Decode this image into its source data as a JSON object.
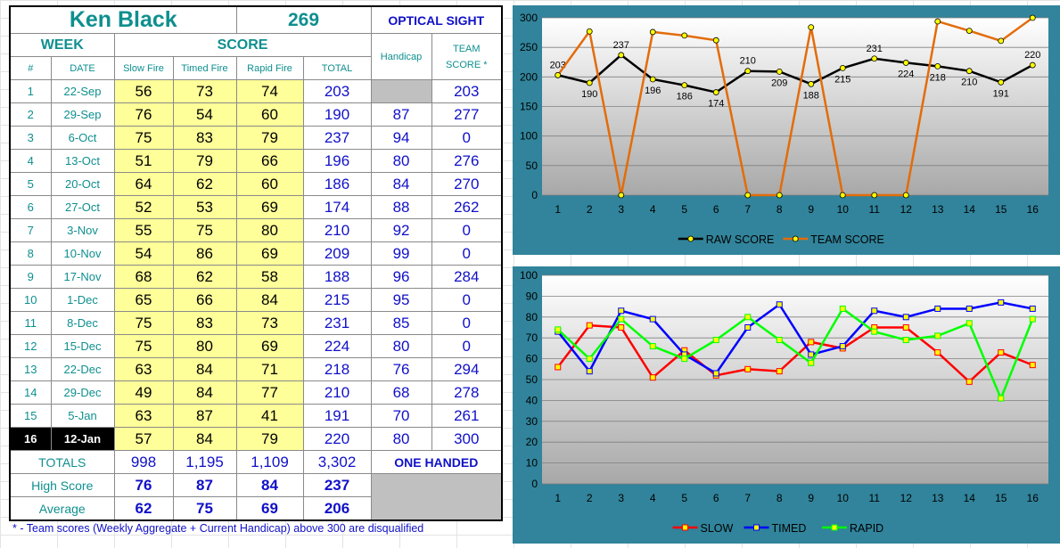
{
  "shooter": {
    "name": "Ken Black",
    "total": "269",
    "category": "OPTICAL SIGHT"
  },
  "headers": {
    "week": "WEEK",
    "score": "SCORE",
    "number": "#",
    "date": "DATE",
    "slow": "Slow Fire",
    "timed": "Timed Fire",
    "rapid": "Rapid Fire",
    "total": "TOTAL",
    "handicap": "Handicap",
    "team_line1": "TEAM",
    "team_line2": "SCORE *"
  },
  "rows": [
    {
      "n": "1",
      "date": "22-Sep",
      "slow": "56",
      "timed": "73",
      "rapid": "74",
      "total": "203",
      "hc": "",
      "team": "203"
    },
    {
      "n": "2",
      "date": "29-Sep",
      "slow": "76",
      "timed": "54",
      "rapid": "60",
      "total": "190",
      "hc": "87",
      "team": "277"
    },
    {
      "n": "3",
      "date": "6-Oct",
      "slow": "75",
      "timed": "83",
      "rapid": "79",
      "total": "237",
      "hc": "94",
      "team": "0"
    },
    {
      "n": "4",
      "date": "13-Oct",
      "slow": "51",
      "timed": "79",
      "rapid": "66",
      "total": "196",
      "hc": "80",
      "team": "276"
    },
    {
      "n": "5",
      "date": "20-Oct",
      "slow": "64",
      "timed": "62",
      "rapid": "60",
      "total": "186",
      "hc": "84",
      "team": "270"
    },
    {
      "n": "6",
      "date": "27-Oct",
      "slow": "52",
      "timed": "53",
      "rapid": "69",
      "total": "174",
      "hc": "88",
      "team": "262"
    },
    {
      "n": "7",
      "date": "3-Nov",
      "slow": "55",
      "timed": "75",
      "rapid": "80",
      "total": "210",
      "hc": "92",
      "team": "0"
    },
    {
      "n": "8",
      "date": "10-Nov",
      "slow": "54",
      "timed": "86",
      "rapid": "69",
      "total": "209",
      "hc": "99",
      "team": "0"
    },
    {
      "n": "9",
      "date": "17-Nov",
      "slow": "68",
      "timed": "62",
      "rapid": "58",
      "total": "188",
      "hc": "96",
      "team": "284"
    },
    {
      "n": "10",
      "date": "1-Dec",
      "slow": "65",
      "timed": "66",
      "rapid": "84",
      "total": "215",
      "hc": "95",
      "team": "0"
    },
    {
      "n": "11",
      "date": "8-Dec",
      "slow": "75",
      "timed": "83",
      "rapid": "73",
      "total": "231",
      "hc": "85",
      "team": "0"
    },
    {
      "n": "12",
      "date": "15-Dec",
      "slow": "75",
      "timed": "80",
      "rapid": "69",
      "total": "224",
      "hc": "80",
      "team": "0"
    },
    {
      "n": "13",
      "date": "22-Dec",
      "slow": "63",
      "timed": "84",
      "rapid": "71",
      "total": "218",
      "hc": "76",
      "team": "294"
    },
    {
      "n": "14",
      "date": "29-Dec",
      "slow": "49",
      "timed": "84",
      "rapid": "77",
      "total": "210",
      "hc": "68",
      "team": "278"
    },
    {
      "n": "15",
      "date": "5-Jan",
      "slow": "63",
      "timed": "87",
      "rapid": "41",
      "total": "191",
      "hc": "70",
      "team": "261"
    },
    {
      "n": "16",
      "date": "12-Jan",
      "slow": "57",
      "timed": "84",
      "rapid": "79",
      "total": "220",
      "hc": "80",
      "team": "300"
    }
  ],
  "summary": {
    "totals_label": "TOTALS",
    "totals": [
      "998",
      "1,195",
      "1,109",
      "3,302"
    ],
    "one_handed": "ONE HANDED",
    "high_label": "High Score",
    "high": [
      "76",
      "87",
      "84",
      "237"
    ],
    "avg_label": "Average",
    "avg": [
      "62",
      "75",
      "69",
      "206"
    ]
  },
  "footnote": "* - Team scores (Weekly Aggregate + Current Handicap) above 300 are disqualified",
  "colors": {
    "chart_frame": "#31849b",
    "raw": "#000000",
    "team": "#e36c0a",
    "slow": "#ff0000",
    "timed": "#0000ff",
    "rapid": "#00ff00",
    "marker": "#ffff00"
  },
  "chart_data": [
    {
      "type": "line",
      "x": [
        1,
        2,
        3,
        4,
        5,
        6,
        7,
        8,
        9,
        10,
        11,
        12,
        13,
        14,
        15,
        16
      ],
      "ylim": [
        0,
        300
      ],
      "yticks": [
        0,
        50,
        100,
        150,
        200,
        250,
        300
      ],
      "grid": true,
      "legend": "bottom",
      "series": [
        {
          "name": "RAW SCORE",
          "color": "#000000",
          "labels": true,
          "values": [
            203,
            190,
            237,
            196,
            186,
            174,
            210,
            209,
            188,
            215,
            231,
            224,
            218,
            210,
            191,
            220
          ]
        },
        {
          "name": "TEAM SCORE",
          "color": "#e36c0a",
          "labels": false,
          "values": [
            203,
            277,
            0,
            276,
            270,
            262,
            0,
            0,
            284,
            0,
            0,
            0,
            294,
            278,
            261,
            300
          ]
        }
      ]
    },
    {
      "type": "line",
      "x": [
        1,
        2,
        3,
        4,
        5,
        6,
        7,
        8,
        9,
        10,
        11,
        12,
        13,
        14,
        15,
        16
      ],
      "ylim": [
        0,
        100
      ],
      "yticks": [
        0,
        10,
        20,
        30,
        40,
        50,
        60,
        70,
        80,
        90,
        100
      ],
      "grid": true,
      "legend": "bottom",
      "series": [
        {
          "name": "SLOW",
          "color": "#ff0000",
          "values": [
            56,
            76,
            75,
            51,
            64,
            52,
            55,
            54,
            68,
            65,
            75,
            75,
            63,
            49,
            63,
            57
          ]
        },
        {
          "name": "TIMED",
          "color": "#0000ff",
          "values": [
            73,
            54,
            83,
            79,
            62,
            53,
            75,
            86,
            62,
            66,
            83,
            80,
            84,
            84,
            87,
            84
          ]
        },
        {
          "name": "RAPID",
          "color": "#00ff00",
          "values": [
            74,
            60,
            79,
            66,
            60,
            69,
            80,
            69,
            58,
            84,
            73,
            69,
            71,
            77,
            41,
            79
          ]
        }
      ]
    }
  ]
}
